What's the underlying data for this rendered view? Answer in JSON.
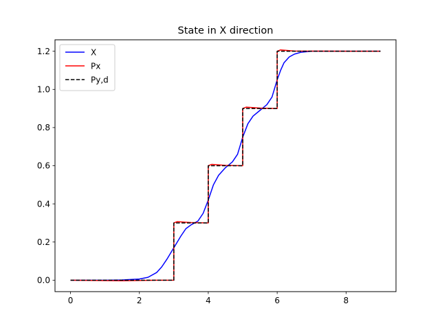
{
  "chart_data": {
    "type": "line",
    "title": "State in X direction",
    "xlabel": "",
    "ylabel": "",
    "xlim": [
      -0.45,
      9.45
    ],
    "ylim": [
      -0.06,
      1.26
    ],
    "xticks": [
      0,
      2,
      4,
      6,
      8
    ],
    "xtick_labels": [
      "0",
      "2",
      "4",
      "6",
      "8"
    ],
    "yticks": [
      0.0,
      0.2,
      0.4,
      0.6,
      0.8,
      1.0,
      1.2
    ],
    "ytick_labels": [
      "0.0",
      "0.2",
      "0.4",
      "0.6",
      "0.8",
      "1.0",
      "1.2"
    ],
    "grid": false,
    "legend_position": "top-left",
    "series": [
      {
        "name": "X",
        "color": "#0000ff",
        "style": "solid",
        "x": [
          0,
          1,
          1.5,
          2,
          2.25,
          2.5,
          2.65,
          2.8,
          2.9,
          3.0,
          3.1,
          3.2,
          3.35,
          3.5,
          3.7,
          3.85,
          4.0,
          4.15,
          4.3,
          4.5,
          4.7,
          4.85,
          5.0,
          5.15,
          5.3,
          5.5,
          5.7,
          5.85,
          6.0,
          6.1,
          6.2,
          6.35,
          6.5,
          6.7,
          7.0,
          7.5,
          8.0,
          9.0
        ],
        "y": [
          0,
          0,
          0.001,
          0.006,
          0.015,
          0.04,
          0.07,
          0.11,
          0.14,
          0.17,
          0.2,
          0.23,
          0.27,
          0.29,
          0.31,
          0.35,
          0.42,
          0.5,
          0.55,
          0.59,
          0.62,
          0.66,
          0.75,
          0.82,
          0.86,
          0.89,
          0.92,
          0.96,
          1.05,
          1.1,
          1.14,
          1.17,
          1.185,
          1.195,
          1.2,
          1.2,
          1.2,
          1.2
        ]
      },
      {
        "name": "Px",
        "color": "#ff0000",
        "style": "solid",
        "x": [
          0,
          1.5,
          2.5,
          3.0,
          3.0,
          3.1,
          3.5,
          4.0,
          4.0,
          4.1,
          4.5,
          5.0,
          5.0,
          5.1,
          5.5,
          6.0,
          6.0,
          6.1,
          6.5,
          9.0
        ],
        "y": [
          0,
          -0.003,
          0,
          0,
          0.3,
          0.307,
          0.302,
          0.3,
          0.6,
          0.607,
          0.602,
          0.6,
          0.9,
          0.907,
          0.902,
          0.9,
          1.2,
          1.207,
          1.201,
          1.2
        ]
      },
      {
        "name": "Py,d",
        "color": "#000000",
        "style": "dashed",
        "x": [
          0,
          3,
          3,
          4,
          4,
          5,
          5,
          6,
          6,
          9
        ],
        "y": [
          0,
          0,
          0.3,
          0.3,
          0.6,
          0.6,
          0.9,
          0.9,
          1.2,
          1.2
        ]
      }
    ]
  }
}
